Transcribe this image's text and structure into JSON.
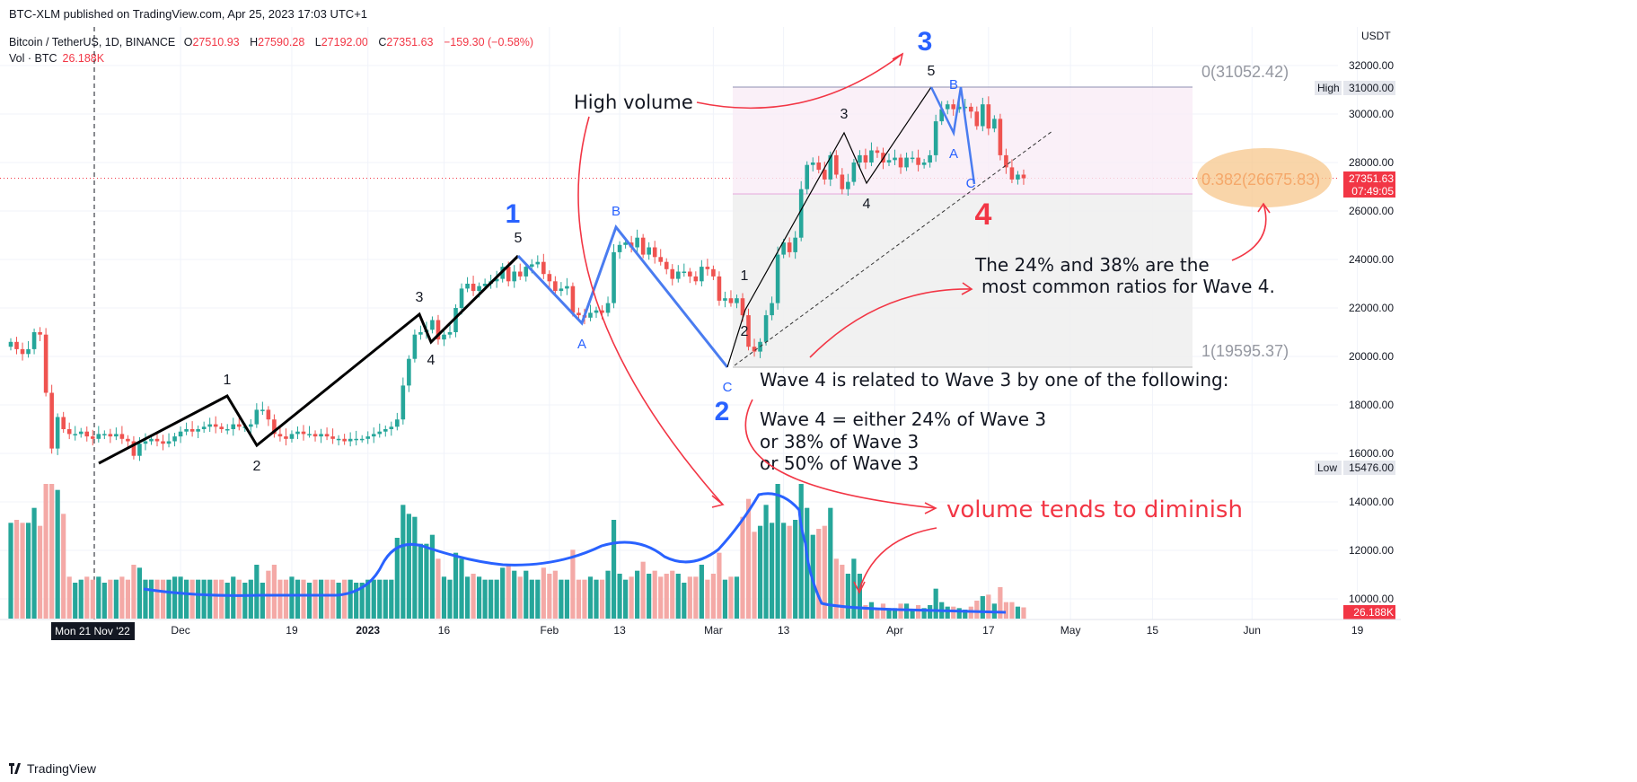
{
  "header": {
    "published": "BTC-XLM published on TradingView.com, Apr 25, 2023 17:03 UTC+1",
    "symbol": "Bitcoin / TetherUS, 1D, BINANCE",
    "ohlc": {
      "o_label": "O",
      "o": "27510.93",
      "h_label": "H",
      "h": "27590.28",
      "l_label": "L",
      "l": "27192.00",
      "c_label": "C",
      "c": "27351.63",
      "change": "−159.30 (−0.58%)"
    },
    "vol_label": "Vol · BTC",
    "vol_value": "26.188K"
  },
  "footer": {
    "brand": "TradingView"
  },
  "price_axis": {
    "currency": "USDT",
    "ticks": [
      "32000.00",
      "30000.00",
      "28000.00",
      "26000.00",
      "24000.00",
      "22000.00",
      "20000.00",
      "18000.00",
      "16000.00",
      "14000.00",
      "12000.00",
      "10000.00"
    ],
    "high_label": "High",
    "high_value": "31000.00",
    "low_label": "Low",
    "low_value": "15476.00",
    "last_price": "27351.63",
    "countdown": "07:49:05",
    "vol_badge": "26.188K"
  },
  "time_axis": {
    "cursor_label": "Mon 21 Nov '22",
    "labels": [
      {
        "day": 29,
        "text": "Dec"
      },
      {
        "day": 48,
        "text": "19"
      },
      {
        "day": 61,
        "text": "2023"
      },
      {
        "day": 74,
        "text": "16"
      },
      {
        "day": 92,
        "text": "Feb"
      },
      {
        "day": 104,
        "text": "13"
      },
      {
        "day": 120,
        "text": "Mar"
      },
      {
        "day": 132,
        "text": "13"
      },
      {
        "day": 151,
        "text": "Apr"
      },
      {
        "day": 167,
        "text": "17"
      },
      {
        "day": 181,
        "text": "May"
      },
      {
        "day": 195,
        "text": "15"
      },
      {
        "day": 212,
        "text": "Jun"
      },
      {
        "day": 230,
        "text": "19"
      }
    ]
  },
  "fib": {
    "level0": "0(31052.42)",
    "level382": "0.382(26675.83)",
    "level1": "1(19595.37)"
  },
  "annotations": {
    "high_volume": "High volume",
    "ratios_line1": "The 24% and 38% are the",
    "ratios_line2": "most common ratios for Wave 4.",
    "relation_line1": "Wave 4 is related to Wave 3 by one of the following:",
    "relation_line2": "Wave 4 = either 24% of Wave 3",
    "relation_line3": "or 38% of Wave 3",
    "relation_line4": "or 50% of Wave 3",
    "volume_diminish": "volume tends to diminish"
  },
  "wave_labels": {
    "big": [
      "1",
      "2",
      "3",
      "4"
    ],
    "black": [
      "1",
      "2",
      "3",
      "4",
      "5"
    ],
    "abc": [
      "A",
      "B",
      "C"
    ]
  },
  "colors": {
    "up": "#26a69a",
    "down": "#ef5350",
    "vol_up": "#26a69a",
    "vol_down": "#f4a9a6",
    "wave_blue": "#2962ff",
    "annotation_red": "#f23645",
    "fib_orange": "#f7c78c",
    "bg": "#ffffff"
  },
  "chart_data": {
    "type": "candlestick",
    "title": "Bitcoin / TetherUS, 1D, BINANCE",
    "x_start_date": "2022-11-01",
    "y_unit": "USDT",
    "ylim": [
      9000,
      33000
    ],
    "price_path": [
      [
        0,
        20600
      ],
      [
        1,
        20300
      ],
      [
        2,
        20100
      ],
      [
        3,
        20300
      ],
      [
        4,
        21000
      ],
      [
        5,
        20900
      ],
      [
        6,
        18500
      ],
      [
        7,
        16200
      ],
      [
        8,
        17500
      ],
      [
        9,
        17000
      ],
      [
        10,
        16800
      ],
      [
        11,
        16800
      ],
      [
        12,
        16900
      ],
      [
        13,
        16700
      ],
      [
        14,
        16600
      ],
      [
        15,
        16800
      ],
      [
        16,
        16800
      ],
      [
        17,
        16700
      ],
      [
        18,
        16800
      ],
      [
        19,
        16600
      ],
      [
        20,
        16500
      ],
      [
        21,
        15900
      ],
      [
        22,
        16400
      ],
      [
        23,
        16500
      ],
      [
        24,
        16600
      ],
      [
        25,
        16500
      ],
      [
        26,
        16400
      ],
      [
        27,
        16500
      ],
      [
        28,
        16700
      ],
      [
        29,
        16900
      ],
      [
        30,
        17000
      ],
      [
        31,
        16900
      ],
      [
        32,
        17000
      ],
      [
        33,
        17100
      ],
      [
        34,
        17200
      ],
      [
        35,
        17100
      ],
      [
        36,
        17000
      ],
      [
        37,
        17000
      ],
      [
        38,
        17200
      ],
      [
        39,
        17100
      ],
      [
        40,
        17100
      ],
      [
        41,
        17200
      ],
      [
        42,
        17800
      ],
      [
        43,
        17800
      ],
      [
        44,
        17400
      ],
      [
        45,
        16800
      ],
      [
        46,
        16700
      ],
      [
        47,
        16600
      ],
      [
        48,
        16800
      ],
      [
        49,
        16900
      ],
      [
        50,
        16800
      ],
      [
        51,
        16800
      ],
      [
        52,
        16700
      ],
      [
        53,
        16800
      ],
      [
        54,
        16700
      ],
      [
        55,
        16600
      ],
      [
        56,
        16600
      ],
      [
        57,
        16500
      ],
      [
        58,
        16600
      ],
      [
        59,
        16600
      ],
      [
        60,
        16600
      ],
      [
        61,
        16700
      ],
      [
        62,
        16800
      ],
      [
        63,
        16900
      ],
      [
        64,
        17000
      ],
      [
        65,
        17100
      ],
      [
        66,
        17400
      ],
      [
        67,
        18800
      ],
      [
        68,
        19900
      ],
      [
        69,
        20900
      ],
      [
        70,
        21000
      ],
      [
        71,
        21100
      ],
      [
        72,
        21500
      ],
      [
        73,
        20700
      ],
      [
        74,
        20900
      ],
      [
        75,
        21000
      ],
      [
        76,
        22000
      ],
      [
        77,
        22800
      ],
      [
        78,
        23000
      ],
      [
        79,
        22700
      ],
      [
        80,
        22900
      ],
      [
        81,
        23000
      ],
      [
        82,
        23100
      ],
      [
        83,
        23200
      ],
      [
        84,
        23700
      ],
      [
        85,
        23100
      ],
      [
        86,
        23500
      ],
      [
        87,
        23300
      ],
      [
        88,
        23700
      ],
      [
        89,
        23800
      ],
      [
        90,
        23900
      ],
      [
        91,
        23400
      ],
      [
        92,
        23100
      ],
      [
        93,
        22700
      ],
      [
        94,
        22800
      ],
      [
        95,
        22900
      ],
      [
        96,
        21800
      ],
      [
        97,
        21700
      ],
      [
        98,
        21600
      ],
      [
        99,
        21800
      ],
      [
        100,
        21900
      ],
      [
        101,
        21800
      ],
      [
        102,
        22200
      ],
      [
        103,
        24300
      ],
      [
        104,
        24600
      ],
      [
        105,
        24700
      ],
      [
        106,
        24500
      ],
      [
        107,
        24900
      ],
      [
        108,
        24200
      ],
      [
        109,
        24500
      ],
      [
        110,
        24100
      ],
      [
        111,
        23900
      ],
      [
        112,
        23600
      ],
      [
        113,
        23200
      ],
      [
        114,
        23500
      ],
      [
        115,
        23500
      ],
      [
        116,
        23300
      ],
      [
        117,
        23100
      ],
      [
        118,
        23700
      ],
      [
        119,
        23600
      ],
      [
        120,
        23300
      ],
      [
        121,
        22300
      ],
      [
        122,
        22400
      ],
      [
        123,
        22200
      ],
      [
        124,
        22400
      ],
      [
        125,
        21700
      ],
      [
        126,
        20400
      ],
      [
        127,
        20200
      ],
      [
        128,
        20600
      ],
      [
        129,
        21700
      ],
      [
        130,
        22200
      ],
      [
        131,
        24200
      ],
      [
        132,
        24700
      ],
      [
        133,
        24300
      ],
      [
        134,
        24900
      ],
      [
        135,
        26900
      ],
      [
        136,
        27900
      ],
      [
        137,
        28000
      ],
      [
        138,
        27700
      ],
      [
        139,
        27300
      ],
      [
        140,
        28300
      ],
      [
        141,
        27500
      ],
      [
        142,
        26900
      ],
      [
        143,
        27200
      ],
      [
        144,
        28000
      ],
      [
        145,
        28300
      ],
      [
        146,
        28000
      ],
      [
        147,
        28500
      ],
      [
        148,
        28400
      ],
      [
        149,
        28000
      ],
      [
        150,
        28100
      ],
      [
        151,
        28200
      ],
      [
        152,
        27800
      ],
      [
        153,
        28200
      ],
      [
        154,
        28200
      ],
      [
        155,
        27900
      ],
      [
        156,
        28000
      ],
      [
        157,
        28300
      ],
      [
        158,
        29700
      ],
      [
        159,
        30200
      ],
      [
        160,
        30400
      ],
      [
        161,
        30200
      ],
      [
        162,
        30300
      ],
      [
        163,
        30300
      ],
      [
        164,
        30100
      ],
      [
        165,
        29500
      ],
      [
        166,
        30400
      ],
      [
        167,
        29400
      ],
      [
        168,
        29800
      ],
      [
        169,
        28300
      ],
      [
        170,
        27800
      ],
      [
        171,
        27300
      ],
      [
        172,
        27500
      ],
      [
        173,
        27350
      ]
    ],
    "volume_note": "per-candle volume bars shown beneath price",
    "elliott_waves": {
      "primary": [
        {
          "label": "1",
          "date": "2023-01-29",
          "price": 24000
        },
        {
          "label": "2",
          "date": "2023-03-10",
          "price": 19600
        },
        {
          "label": "3",
          "date": "2023-04-14",
          "price": 31000
        },
        {
          "label": "4",
          "date": "2023-04-24",
          "price": 27000
        }
      ],
      "fib_levels": [
        {
          "ratio": 0,
          "price": 31052.42
        },
        {
          "ratio": 0.382,
          "price": 26675.83
        },
        {
          "ratio": 1,
          "price": 19595.37
        }
      ]
    }
  }
}
